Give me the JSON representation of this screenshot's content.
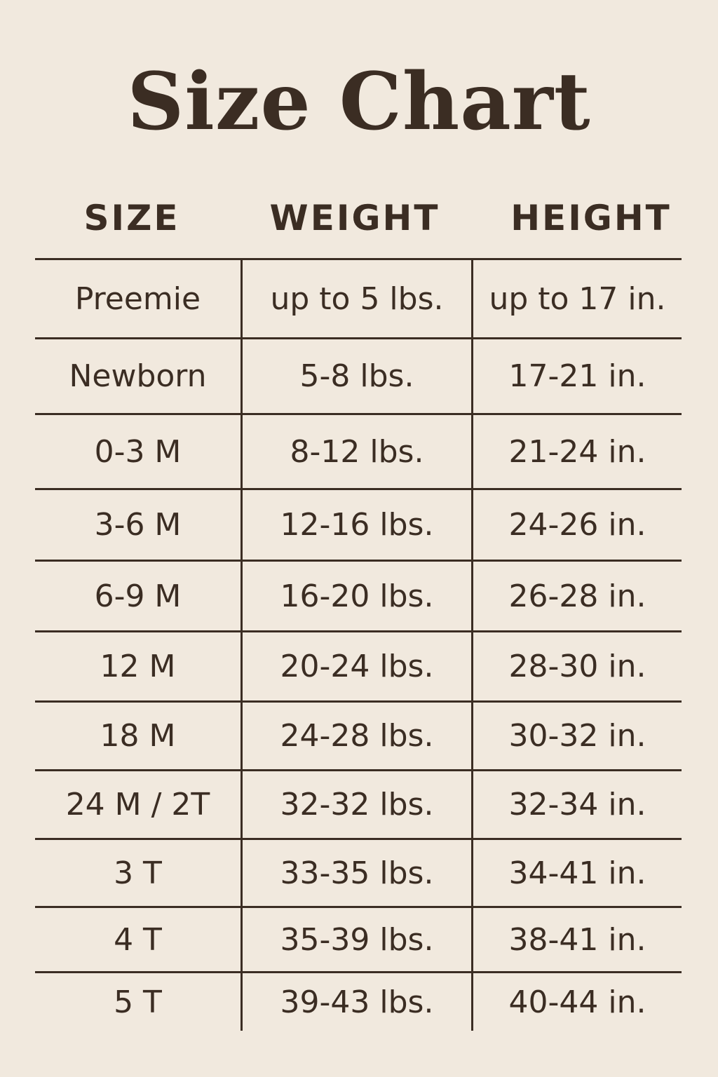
{
  "title": "Size Chart",
  "columns": [
    "SIZE",
    "WEIGHT",
    "HEIGHT"
  ],
  "rows": [
    [
      "Preemie",
      "up to 5 lbs.",
      "up to 17 in."
    ],
    [
      "Newborn",
      "5-8 lbs.",
      "17-21 in."
    ],
    [
      "0-3 M",
      "8-12 lbs.",
      "21-24 in."
    ],
    [
      "3-6 M",
      "12-16 lbs.",
      "24-26 in."
    ],
    [
      "6-9 M",
      "16-20 lbs.",
      "26-28 in."
    ],
    [
      "12 M",
      "20-24 lbs.",
      "28-30 in."
    ],
    [
      "18 M",
      "24-28 lbs.",
      "30-32 in."
    ],
    [
      "24 M / 2T",
      "32-32 lbs.",
      "32-34 in."
    ],
    [
      "3 T",
      "33-35 lbs.",
      "34-41 in."
    ],
    [
      "4 T",
      "35-39 lbs.",
      "38-41 in."
    ],
    [
      "5 T",
      "39-43 lbs.",
      "40-44 in."
    ]
  ],
  "colors": {
    "background": "#f1e9de",
    "text": "#3b2d23"
  }
}
